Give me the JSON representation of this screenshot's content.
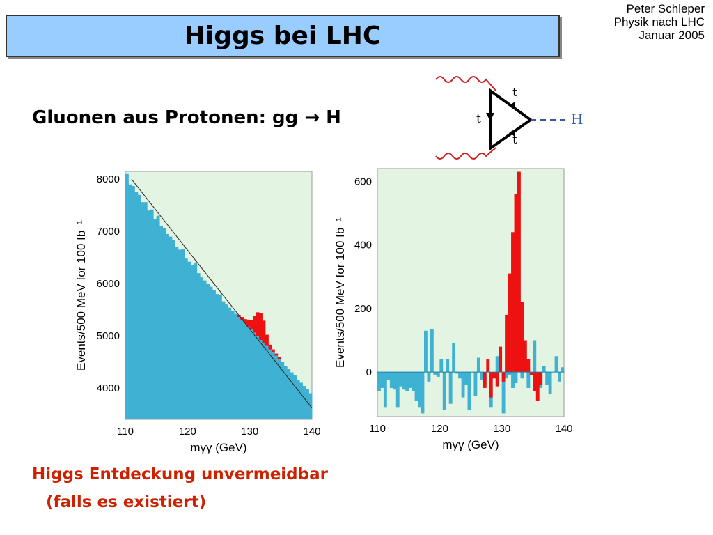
{
  "slide": {
    "title": "Higgs bei LHC",
    "author": [
      "Peter Schleper",
      "Physik nach LHC",
      "Januar 2005"
    ],
    "subtitle": "Gluonen aus Protonen: gg → H",
    "conclusion_line1": "Higgs Entdeckung unvermeidbar",
    "conclusion_line2": "(falls es existiert)",
    "feynman_labels": [
      "t",
      "t",
      "t",
      "H"
    ],
    "colors": {
      "title_bg": "#99ccff",
      "background_fill": "#3fb1d3",
      "signal_fill": "#ee1111",
      "plot_bg": "#e3f4e3",
      "conclusion_text": "#cc2200"
    }
  },
  "chart_data": [
    {
      "type": "bar",
      "title": "",
      "xlabel": "mγγ (GeV)",
      "ylabel": "Events/500 MeV for 100 fb⁻¹",
      "xlim": [
        110,
        140
      ],
      "ylim": [
        3400,
        8150
      ],
      "xticks": [
        110,
        120,
        130,
        140
      ],
      "yticks": [
        4000,
        5000,
        6000,
        7000,
        8000
      ],
      "bin_width": 0.5,
      "series": [
        {
          "values": [
            8100,
            7900,
            7870,
            7750,
            7700,
            7560,
            7560,
            7400,
            7420,
            7240,
            7300,
            7100,
            7060,
            6950,
            6900,
            6830,
            6700,
            6650,
            6660,
            6480,
            6420,
            6360,
            6400,
            6200,
            6120,
            6060,
            5990,
            5940,
            5880,
            5800,
            5790,
            5660,
            5600,
            5540,
            5480,
            5420,
            5360,
            5300,
            5240,
            5180,
            5120,
            5060,
            5000,
            4920,
            4860,
            4820,
            4740,
            4680,
            4620,
            4560,
            4500,
            4420,
            4360,
            4300,
            4240,
            4160,
            4100,
            4040,
            3980,
            3900
          ]
        },
        {
          "values": [
            0,
            0,
            0,
            0,
            0,
            0,
            0,
            0,
            0,
            0,
            0,
            0,
            0,
            0,
            0,
            0,
            0,
            0,
            0,
            0,
            0,
            0,
            0,
            0,
            0,
            0,
            0,
            0,
            0,
            0,
            0,
            0,
            0,
            0,
            0,
            0,
            40,
            60,
            80,
            130,
            180,
            320,
            450,
            520,
            430,
            200,
            90,
            60,
            40,
            30,
            0,
            0,
            0,
            0,
            0,
            0,
            0,
            0,
            0,
            0
          ]
        }
      ],
      "reference_line": {
        "x": [
          111,
          140
        ],
        "y": [
          8000,
          3620
        ]
      }
    },
    {
      "type": "bar",
      "title": "",
      "xlabel": "mγγ (GeV)",
      "ylabel": "Events/500 MeV for 100 fb⁻¹",
      "xlim": [
        110,
        140
      ],
      "ylim": [
        -140,
        640
      ],
      "xticks": [
        110,
        120,
        130,
        140
      ],
      "yticks": [
        0,
        200,
        400,
        600
      ],
      "bin_width": 0.5,
      "series": [
        {
          "values": [
            -60,
            -50,
            -110,
            -25,
            -50,
            -55,
            -110,
            -45,
            -55,
            -60,
            -50,
            -60,
            -90,
            -110,
            -130,
            130,
            -30,
            135,
            -10,
            -15,
            40,
            -120,
            40,
            -100,
            90,
            -5,
            -20,
            -80,
            -40,
            -120,
            0,
            -75,
            45,
            -25,
            -40,
            0,
            -110,
            -20,
            50,
            25,
            -130,
            -20,
            -10,
            -50,
            -35,
            0,
            -20,
            0,
            -50,
            0,
            100,
            -20,
            -50,
            20,
            -40,
            -70,
            0,
            50,
            -30,
            15
          ]
        },
        {
          "values": [
            0,
            0,
            0,
            0,
            0,
            0,
            0,
            0,
            0,
            0,
            0,
            0,
            0,
            0,
            0,
            0,
            0,
            0,
            0,
            0,
            0,
            0,
            0,
            0,
            0,
            0,
            0,
            0,
            0,
            0,
            0,
            0,
            0,
            0,
            -50,
            40,
            -80,
            -20,
            -45,
            80,
            -30,
            180,
            310,
            440,
            560,
            630,
            220,
            100,
            40,
            -10,
            -60,
            -90,
            -40,
            0,
            0,
            0,
            0,
            0,
            0,
            0
          ]
        }
      ]
    }
  ]
}
